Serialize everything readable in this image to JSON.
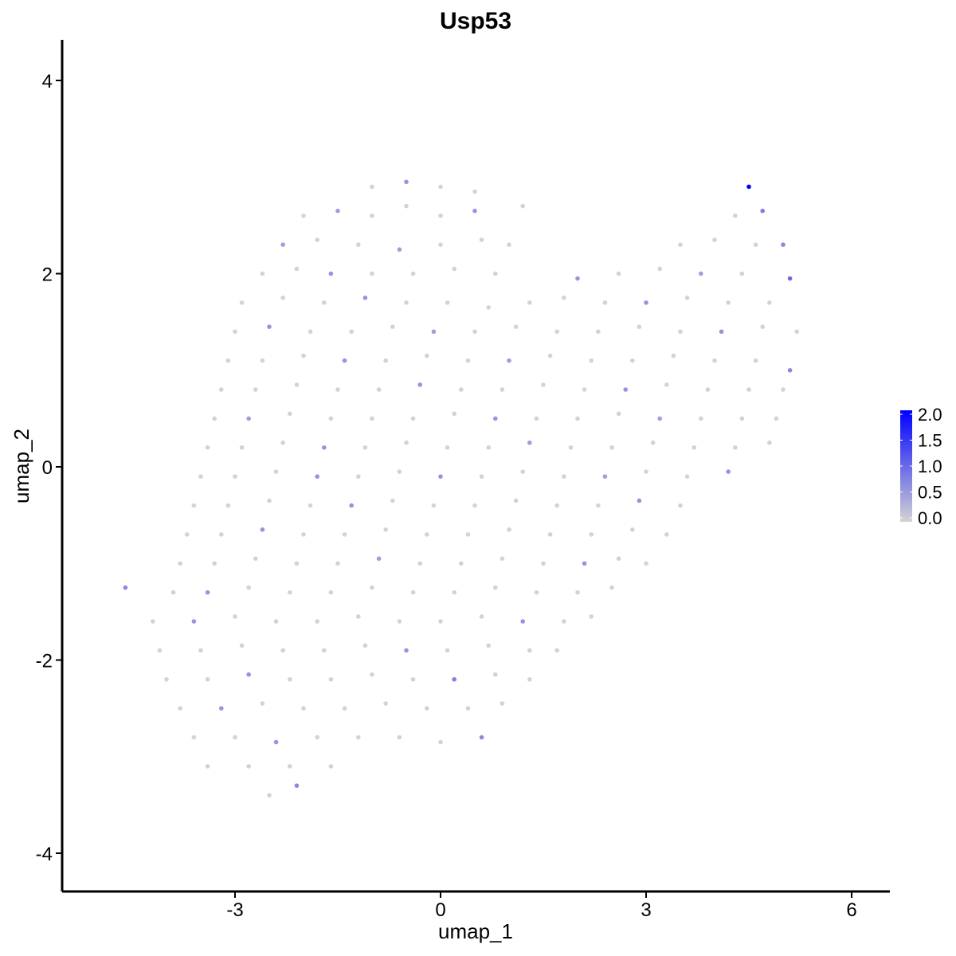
{
  "chart_data": {
    "type": "scatter",
    "title": "Usp53",
    "xlabel": "umap_1",
    "ylabel": "umap_2",
    "xlim": [
      -5.4,
      6.6
    ],
    "ylim": [
      -4.35,
      4.4
    ],
    "xticks": [
      -3,
      0,
      3,
      6
    ],
    "yticks": [
      -4,
      -2,
      0,
      2,
      4
    ],
    "xtick_labels": [
      "-3",
      "0",
      "3",
      "6"
    ],
    "ytick_labels": [
      "-4",
      "-2",
      "0",
      "2",
      "4"
    ],
    "grid": false,
    "legend": {
      "placement": "right",
      "type": "colorbar",
      "range": [
        0,
        2.0
      ],
      "labels": [
        "2.0",
        "1.5",
        "1.0",
        "0.5",
        "0.0"
      ],
      "low_color": "#D3D3D3",
      "high_color": "#0000FF"
    },
    "points_note_fields": [
      "umap_1",
      "umap_2",
      "expression"
    ],
    "points": [
      [
        -1.0,
        2.9,
        0
      ],
      [
        -0.5,
        2.95,
        0.6
      ],
      [
        0.0,
        2.9,
        0
      ],
      [
        0.5,
        2.85,
        0
      ],
      [
        4.5,
        2.9,
        2.0
      ],
      [
        -2.0,
        2.6,
        0
      ],
      [
        -1.5,
        2.65,
        0.5
      ],
      [
        -1.0,
        2.6,
        0
      ],
      [
        -0.5,
        2.7,
        0
      ],
      [
        0.0,
        2.6,
        0
      ],
      [
        0.5,
        2.65,
        0.6
      ],
      [
        1.2,
        2.7,
        0
      ],
      [
        4.3,
        2.6,
        0
      ],
      [
        4.7,
        2.65,
        0.8
      ],
      [
        -2.3,
        2.3,
        0.5
      ],
      [
        -1.8,
        2.35,
        0
      ],
      [
        -1.2,
        2.3,
        0
      ],
      [
        -0.6,
        2.25,
        0.5
      ],
      [
        0.0,
        2.3,
        0
      ],
      [
        0.6,
        2.35,
        0
      ],
      [
        1.0,
        2.3,
        0
      ],
      [
        3.5,
        2.3,
        0
      ],
      [
        4.0,
        2.35,
        0
      ],
      [
        4.6,
        2.3,
        0
      ],
      [
        5.0,
        2.3,
        0.7
      ],
      [
        -2.6,
        2.0,
        0
      ],
      [
        -2.1,
        2.05,
        0
      ],
      [
        -1.6,
        2.0,
        0.6
      ],
      [
        -1.0,
        2.0,
        0
      ],
      [
        -0.4,
        2.0,
        0
      ],
      [
        0.2,
        2.05,
        0
      ],
      [
        0.8,
        2.0,
        0
      ],
      [
        2.0,
        1.95,
        0.6
      ],
      [
        2.6,
        2.0,
        0
      ],
      [
        3.2,
        2.05,
        0
      ],
      [
        3.8,
        2.0,
        0.5
      ],
      [
        4.4,
        2.0,
        0
      ],
      [
        5.1,
        1.95,
        1.0
      ],
      [
        -2.9,
        1.7,
        0
      ],
      [
        -2.3,
        1.75,
        0
      ],
      [
        -1.7,
        1.7,
        0
      ],
      [
        -1.1,
        1.75,
        0.6
      ],
      [
        -0.5,
        1.7,
        0
      ],
      [
        0.1,
        1.7,
        0
      ],
      [
        0.7,
        1.65,
        0
      ],
      [
        1.3,
        1.7,
        0
      ],
      [
        1.8,
        1.75,
        0
      ],
      [
        2.4,
        1.7,
        0
      ],
      [
        3.0,
        1.7,
        0.6
      ],
      [
        3.6,
        1.75,
        0
      ],
      [
        4.2,
        1.7,
        0
      ],
      [
        4.8,
        1.7,
        0
      ],
      [
        -3.0,
        1.4,
        0
      ],
      [
        -2.5,
        1.45,
        0.6
      ],
      [
        -1.9,
        1.4,
        0
      ],
      [
        -1.3,
        1.4,
        0
      ],
      [
        -0.7,
        1.45,
        0
      ],
      [
        -0.1,
        1.4,
        0.5
      ],
      [
        0.5,
        1.4,
        0
      ],
      [
        1.1,
        1.45,
        0
      ],
      [
        1.7,
        1.4,
        0
      ],
      [
        2.3,
        1.4,
        0
      ],
      [
        2.9,
        1.45,
        0
      ],
      [
        3.5,
        1.4,
        0
      ],
      [
        4.1,
        1.4,
        0.6
      ],
      [
        4.7,
        1.45,
        0
      ],
      [
        5.2,
        1.4,
        0
      ],
      [
        -3.1,
        1.1,
        0
      ],
      [
        -2.6,
        1.1,
        0
      ],
      [
        -2.0,
        1.15,
        0
      ],
      [
        -1.4,
        1.1,
        0.6
      ],
      [
        -0.8,
        1.1,
        0
      ],
      [
        -0.2,
        1.15,
        0
      ],
      [
        0.4,
        1.1,
        0
      ],
      [
        1.0,
        1.1,
        0.5
      ],
      [
        1.6,
        1.15,
        0
      ],
      [
        2.2,
        1.1,
        0
      ],
      [
        2.8,
        1.1,
        0
      ],
      [
        3.4,
        1.15,
        0
      ],
      [
        4.0,
        1.1,
        0
      ],
      [
        4.6,
        1.1,
        0
      ],
      [
        5.1,
        1.0,
        0.7
      ],
      [
        -3.2,
        0.8,
        0
      ],
      [
        -2.7,
        0.8,
        0
      ],
      [
        -2.1,
        0.85,
        0
      ],
      [
        -1.5,
        0.8,
        0
      ],
      [
        -0.9,
        0.8,
        0
      ],
      [
        -0.3,
        0.85,
        0.6
      ],
      [
        0.3,
        0.8,
        0
      ],
      [
        0.9,
        0.8,
        0
      ],
      [
        1.5,
        0.85,
        0
      ],
      [
        2.1,
        0.8,
        0
      ],
      [
        2.7,
        0.8,
        0.6
      ],
      [
        3.3,
        0.85,
        0
      ],
      [
        3.9,
        0.8,
        0
      ],
      [
        4.5,
        0.8,
        0
      ],
      [
        5.0,
        0.8,
        0
      ],
      [
        -3.3,
        0.5,
        0
      ],
      [
        -2.8,
        0.5,
        0.5
      ],
      [
        -2.2,
        0.55,
        0
      ],
      [
        -1.6,
        0.5,
        0
      ],
      [
        -1.0,
        0.5,
        0
      ],
      [
        -0.4,
        0.5,
        0
      ],
      [
        0.2,
        0.55,
        0
      ],
      [
        0.8,
        0.5,
        0.6
      ],
      [
        1.4,
        0.5,
        0
      ],
      [
        2.0,
        0.5,
        0
      ],
      [
        2.6,
        0.55,
        0
      ],
      [
        3.2,
        0.5,
        0.5
      ],
      [
        3.8,
        0.5,
        0
      ],
      [
        4.4,
        0.5,
        0
      ],
      [
        4.9,
        0.5,
        0
      ],
      [
        -3.4,
        0.2,
        0
      ],
      [
        -2.9,
        0.2,
        0
      ],
      [
        -2.3,
        0.25,
        0
      ],
      [
        -1.7,
        0.2,
        0.6
      ],
      [
        -1.1,
        0.2,
        0
      ],
      [
        -0.5,
        0.25,
        0
      ],
      [
        0.1,
        0.2,
        0
      ],
      [
        0.7,
        0.2,
        0
      ],
      [
        1.3,
        0.25,
        0.5
      ],
      [
        1.9,
        0.2,
        0
      ],
      [
        2.5,
        0.2,
        0
      ],
      [
        3.1,
        0.25,
        0
      ],
      [
        3.7,
        0.2,
        0
      ],
      [
        4.3,
        0.2,
        0
      ],
      [
        4.8,
        0.25,
        0
      ],
      [
        -3.5,
        -0.1,
        0
      ],
      [
        -3.0,
        -0.1,
        0
      ],
      [
        -2.4,
        -0.05,
        0
      ],
      [
        -1.8,
        -0.1,
        0.6
      ],
      [
        -1.2,
        -0.1,
        0
      ],
      [
        -0.6,
        -0.05,
        0
      ],
      [
        0.0,
        -0.1,
        0.6
      ],
      [
        0.6,
        -0.1,
        0
      ],
      [
        1.2,
        -0.05,
        0
      ],
      [
        1.8,
        -0.1,
        0
      ],
      [
        2.4,
        -0.1,
        0.5
      ],
      [
        3.0,
        -0.05,
        0
      ],
      [
        3.6,
        -0.1,
        0
      ],
      [
        4.2,
        -0.05,
        0.6
      ],
      [
        -3.6,
        -0.4,
        0
      ],
      [
        -3.1,
        -0.4,
        0
      ],
      [
        -2.5,
        -0.35,
        0
      ],
      [
        -1.9,
        -0.4,
        0
      ],
      [
        -1.3,
        -0.4,
        0.6
      ],
      [
        -0.7,
        -0.35,
        0
      ],
      [
        -0.1,
        -0.4,
        0
      ],
      [
        0.5,
        -0.4,
        0
      ],
      [
        1.1,
        -0.35,
        0
      ],
      [
        1.7,
        -0.4,
        0
      ],
      [
        2.3,
        -0.4,
        0
      ],
      [
        2.9,
        -0.35,
        0.6
      ],
      [
        3.5,
        -0.4,
        0
      ],
      [
        -3.7,
        -0.7,
        0
      ],
      [
        -3.2,
        -0.7,
        0
      ],
      [
        -2.6,
        -0.65,
        0.6
      ],
      [
        -2.0,
        -0.7,
        0
      ],
      [
        -1.4,
        -0.7,
        0
      ],
      [
        -0.8,
        -0.65,
        0
      ],
      [
        -0.2,
        -0.7,
        0
      ],
      [
        0.4,
        -0.7,
        0
      ],
      [
        1.0,
        -0.65,
        0
      ],
      [
        1.6,
        -0.7,
        0
      ],
      [
        2.2,
        -0.7,
        0
      ],
      [
        2.8,
        -0.65,
        0
      ],
      [
        3.3,
        -0.7,
        0
      ],
      [
        -3.8,
        -1.0,
        0
      ],
      [
        -3.3,
        -1.0,
        0
      ],
      [
        -2.7,
        -0.95,
        0
      ],
      [
        -2.1,
        -1.0,
        0
      ],
      [
        -1.5,
        -1.0,
        0
      ],
      [
        -0.9,
        -0.95,
        0.5
      ],
      [
        -0.3,
        -1.0,
        0
      ],
      [
        0.3,
        -1.0,
        0
      ],
      [
        0.9,
        -0.95,
        0
      ],
      [
        1.5,
        -1.0,
        0
      ],
      [
        2.1,
        -1.0,
        0.6
      ],
      [
        2.6,
        -0.95,
        0
      ],
      [
        3.0,
        -1.0,
        0
      ],
      [
        -4.6,
        -1.25,
        0.7
      ],
      [
        -3.9,
        -1.3,
        0
      ],
      [
        -3.4,
        -1.3,
        0.6
      ],
      [
        -2.8,
        -1.25,
        0
      ],
      [
        -2.2,
        -1.3,
        0
      ],
      [
        -1.6,
        -1.3,
        0
      ],
      [
        -1.0,
        -1.25,
        0
      ],
      [
        -0.4,
        -1.3,
        0
      ],
      [
        0.2,
        -1.3,
        0
      ],
      [
        0.8,
        -1.25,
        0
      ],
      [
        1.4,
        -1.3,
        0
      ],
      [
        2.0,
        -1.3,
        0
      ],
      [
        2.5,
        -1.25,
        0
      ],
      [
        -4.2,
        -1.6,
        0
      ],
      [
        -3.6,
        -1.6,
        0.6
      ],
      [
        -3.0,
        -1.55,
        0
      ],
      [
        -2.4,
        -1.6,
        0
      ],
      [
        -1.8,
        -1.6,
        0
      ],
      [
        -1.2,
        -1.55,
        0
      ],
      [
        -0.6,
        -1.6,
        0
      ],
      [
        0.0,
        -1.6,
        0
      ],
      [
        0.6,
        -1.55,
        0
      ],
      [
        1.2,
        -1.6,
        0.6
      ],
      [
        1.8,
        -1.6,
        0
      ],
      [
        2.2,
        -1.55,
        0
      ],
      [
        -4.1,
        -1.9,
        0
      ],
      [
        -3.5,
        -1.9,
        0
      ],
      [
        -2.9,
        -1.85,
        0
      ],
      [
        -2.3,
        -1.9,
        0
      ],
      [
        -1.7,
        -1.9,
        0
      ],
      [
        -1.1,
        -1.85,
        0
      ],
      [
        -0.5,
        -1.9,
        0.6
      ],
      [
        0.1,
        -1.9,
        0
      ],
      [
        0.7,
        -1.85,
        0
      ],
      [
        1.3,
        -1.9,
        0
      ],
      [
        1.7,
        -1.9,
        0
      ],
      [
        -4.0,
        -2.2,
        0
      ],
      [
        -3.4,
        -2.2,
        0
      ],
      [
        -2.8,
        -2.15,
        0.6
      ],
      [
        -2.2,
        -2.2,
        0
      ],
      [
        -1.6,
        -2.2,
        0
      ],
      [
        -1.0,
        -2.15,
        0
      ],
      [
        -0.4,
        -2.2,
        0
      ],
      [
        0.2,
        -2.2,
        0.8
      ],
      [
        0.8,
        -2.15,
        0
      ],
      [
        1.3,
        -2.2,
        0
      ],
      [
        -3.8,
        -2.5,
        0
      ],
      [
        -3.2,
        -2.5,
        0.6
      ],
      [
        -2.6,
        -2.45,
        0
      ],
      [
        -2.0,
        -2.5,
        0
      ],
      [
        -1.4,
        -2.5,
        0
      ],
      [
        -0.8,
        -2.45,
        0
      ],
      [
        -0.2,
        -2.5,
        0
      ],
      [
        0.4,
        -2.5,
        0
      ],
      [
        0.9,
        -2.45,
        0
      ],
      [
        -3.6,
        -2.8,
        0
      ],
      [
        -3.0,
        -2.8,
        0
      ],
      [
        -2.4,
        -2.85,
        0.6
      ],
      [
        -1.8,
        -2.8,
        0
      ],
      [
        -1.2,
        -2.8,
        0
      ],
      [
        -0.6,
        -2.8,
        0
      ],
      [
        0.0,
        -2.85,
        0
      ],
      [
        0.6,
        -2.8,
        0.7
      ],
      [
        -3.4,
        -3.1,
        0
      ],
      [
        -2.8,
        -3.1,
        0
      ],
      [
        -2.2,
        -3.1,
        0
      ],
      [
        -1.6,
        -3.1,
        0
      ],
      [
        -2.5,
        -3.4,
        0
      ],
      [
        -2.1,
        -3.3,
        0.7
      ]
    ]
  }
}
